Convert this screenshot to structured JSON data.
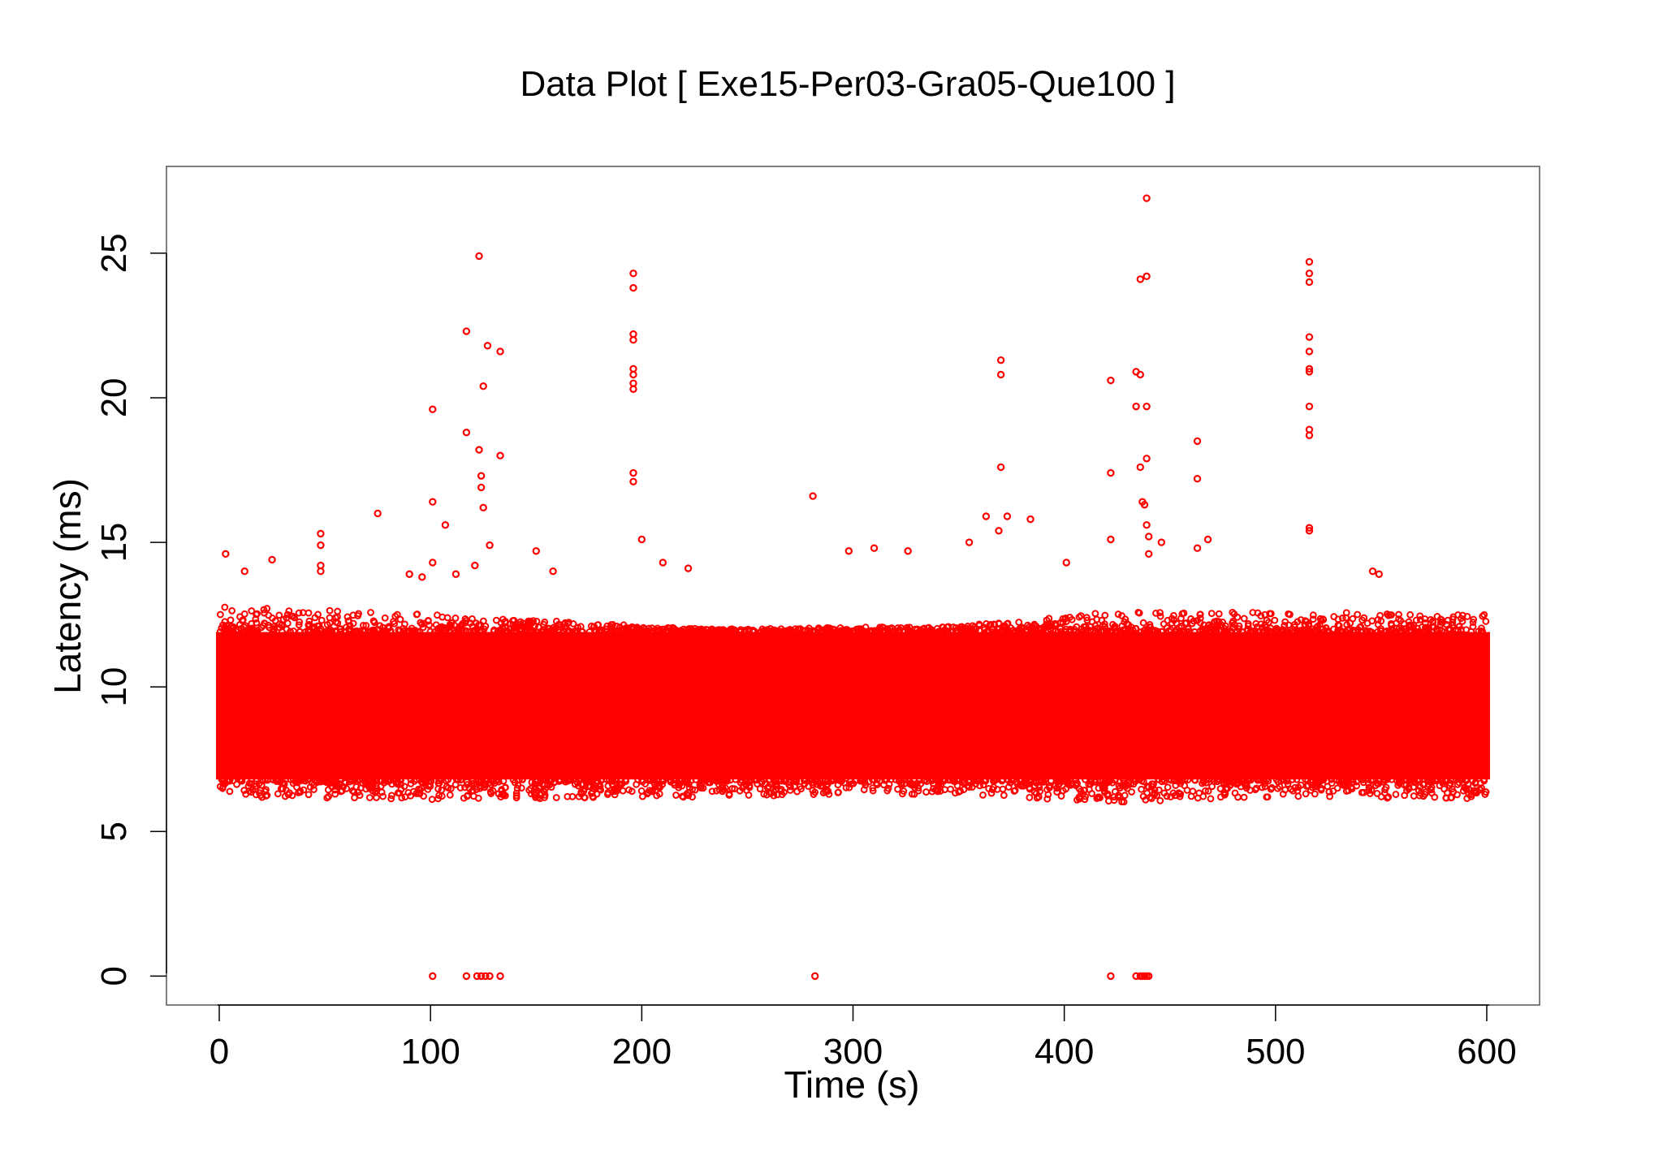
{
  "chart_data": {
    "type": "scatter",
    "title": "Data Plot [ Exe15-Per03-Gra05-Que100 ]",
    "xlabel": "Time (s)",
    "ylabel": "Latency (ms)",
    "xlim": [
      -25,
      625
    ],
    "ylim": [
      -1,
      28
    ],
    "x_ticks": [
      0,
      100,
      200,
      300,
      400,
      500,
      600
    ],
    "y_ticks": [
      0,
      5,
      10,
      15,
      20,
      25
    ],
    "grid": false,
    "legend": "none",
    "marker": "open-circle",
    "color": "#ff0000",
    "series": [
      {
        "dense_band": {
          "x_range": [
            0,
            600
          ],
          "core_y_range": [
            6.8,
            11.9
          ],
          "envelope": [
            {
              "x": 0,
              "low": 6.2,
              "high": 12.8
            },
            {
              "x": 100,
              "low": 6.1,
              "high": 12.5
            },
            {
              "x": 230,
              "low": 6.2,
              "high": 12.0
            },
            {
              "x": 350,
              "low": 6.3,
              "high": 12.1
            },
            {
              "x": 420,
              "low": 6.0,
              "high": 12.6
            },
            {
              "x": 500,
              "low": 6.2,
              "high": 12.6
            },
            {
              "x": 600,
              "low": 6.1,
              "high": 12.5
            }
          ]
        },
        "points": [
          {
            "x": 3,
            "y": 14.6
          },
          {
            "x": 12,
            "y": 14.0
          },
          {
            "x": 25,
            "y": 14.4
          },
          {
            "x": 48,
            "y": 15.3
          },
          {
            "x": 48,
            "y": 14.9
          },
          {
            "x": 48,
            "y": 14.2
          },
          {
            "x": 48,
            "y": 14.0
          },
          {
            "x": 75,
            "y": 16.0
          },
          {
            "x": 90,
            "y": 13.9
          },
          {
            "x": 96,
            "y": 13.8
          },
          {
            "x": 101,
            "y": 19.6
          },
          {
            "x": 101,
            "y": 16.4
          },
          {
            "x": 101,
            "y": 14.3
          },
          {
            "x": 107,
            "y": 15.6
          },
          {
            "x": 112,
            "y": 13.9
          },
          {
            "x": 117,
            "y": 22.3
          },
          {
            "x": 117,
            "y": 18.8
          },
          {
            "x": 121,
            "y": 14.2
          },
          {
            "x": 123,
            "y": 24.9
          },
          {
            "x": 123,
            "y": 18.2
          },
          {
            "x": 124,
            "y": 17.3
          },
          {
            "x": 124,
            "y": 16.9
          },
          {
            "x": 125,
            "y": 20.4
          },
          {
            "x": 125,
            "y": 16.2
          },
          {
            "x": 127,
            "y": 21.8
          },
          {
            "x": 128,
            "y": 14.9
          },
          {
            "x": 133,
            "y": 21.6
          },
          {
            "x": 133,
            "y": 18.0
          },
          {
            "x": 150,
            "y": 14.7
          },
          {
            "x": 158,
            "y": 14.0
          },
          {
            "x": 196,
            "y": 24.3
          },
          {
            "x": 196,
            "y": 23.8
          },
          {
            "x": 196,
            "y": 22.2
          },
          {
            "x": 196,
            "y": 22.0
          },
          {
            "x": 196,
            "y": 21.0
          },
          {
            "x": 196,
            "y": 20.8
          },
          {
            "x": 196,
            "y": 20.5
          },
          {
            "x": 196,
            "y": 20.3
          },
          {
            "x": 196,
            "y": 17.4
          },
          {
            "x": 196,
            "y": 17.1
          },
          {
            "x": 200,
            "y": 15.1
          },
          {
            "x": 210,
            "y": 14.3
          },
          {
            "x": 222,
            "y": 14.1
          },
          {
            "x": 281,
            "y": 16.6
          },
          {
            "x": 298,
            "y": 14.7
          },
          {
            "x": 310,
            "y": 14.8
          },
          {
            "x": 326,
            "y": 14.7
          },
          {
            "x": 355,
            "y": 15.0
          },
          {
            "x": 363,
            "y": 15.9
          },
          {
            "x": 369,
            "y": 15.4
          },
          {
            "x": 370,
            "y": 21.3
          },
          {
            "x": 370,
            "y": 20.8
          },
          {
            "x": 370,
            "y": 17.6
          },
          {
            "x": 373,
            "y": 15.9
          },
          {
            "x": 384,
            "y": 15.8
          },
          {
            "x": 401,
            "y": 14.3
          },
          {
            "x": 422,
            "y": 20.6
          },
          {
            "x": 422,
            "y": 17.4
          },
          {
            "x": 422,
            "y": 15.1
          },
          {
            "x": 434,
            "y": 20.9
          },
          {
            "x": 434,
            "y": 19.7
          },
          {
            "x": 436,
            "y": 24.1
          },
          {
            "x": 436,
            "y": 20.8
          },
          {
            "x": 436,
            "y": 17.6
          },
          {
            "x": 437,
            "y": 16.4
          },
          {
            "x": 438,
            "y": 16.3
          },
          {
            "x": 439,
            "y": 26.9
          },
          {
            "x": 439,
            "y": 24.2
          },
          {
            "x": 439,
            "y": 19.7
          },
          {
            "x": 439,
            "y": 17.9
          },
          {
            "x": 439,
            "y": 15.6
          },
          {
            "x": 440,
            "y": 15.2
          },
          {
            "x": 440,
            "y": 14.6
          },
          {
            "x": 446,
            "y": 15.0
          },
          {
            "x": 463,
            "y": 18.5
          },
          {
            "x": 463,
            "y": 17.2
          },
          {
            "x": 463,
            "y": 14.8
          },
          {
            "x": 468,
            "y": 15.1
          },
          {
            "x": 516,
            "y": 24.7
          },
          {
            "x": 516,
            "y": 24.3
          },
          {
            "x": 516,
            "y": 24.0
          },
          {
            "x": 516,
            "y": 22.1
          },
          {
            "x": 516,
            "y": 21.6
          },
          {
            "x": 516,
            "y": 21.0
          },
          {
            "x": 516,
            "y": 20.9
          },
          {
            "x": 516,
            "y": 19.7
          },
          {
            "x": 516,
            "y": 18.9
          },
          {
            "x": 516,
            "y": 18.7
          },
          {
            "x": 516,
            "y": 15.5
          },
          {
            "x": 516,
            "y": 15.4
          },
          {
            "x": 546,
            "y": 14.0
          },
          {
            "x": 549,
            "y": 13.9
          },
          {
            "x": 101,
            "y": 0
          },
          {
            "x": 117,
            "y": 0
          },
          {
            "x": 122,
            "y": 0
          },
          {
            "x": 124,
            "y": 0
          },
          {
            "x": 126,
            "y": 0
          },
          {
            "x": 128,
            "y": 0
          },
          {
            "x": 133,
            "y": 0
          },
          {
            "x": 282,
            "y": 0
          },
          {
            "x": 422,
            "y": 0
          },
          {
            "x": 434,
            "y": 0
          },
          {
            "x": 436,
            "y": 0
          },
          {
            "x": 437,
            "y": 0
          },
          {
            "x": 438,
            "y": 0
          },
          {
            "x": 439,
            "y": 0
          },
          {
            "x": 440,
            "y": 0
          }
        ]
      }
    ]
  }
}
